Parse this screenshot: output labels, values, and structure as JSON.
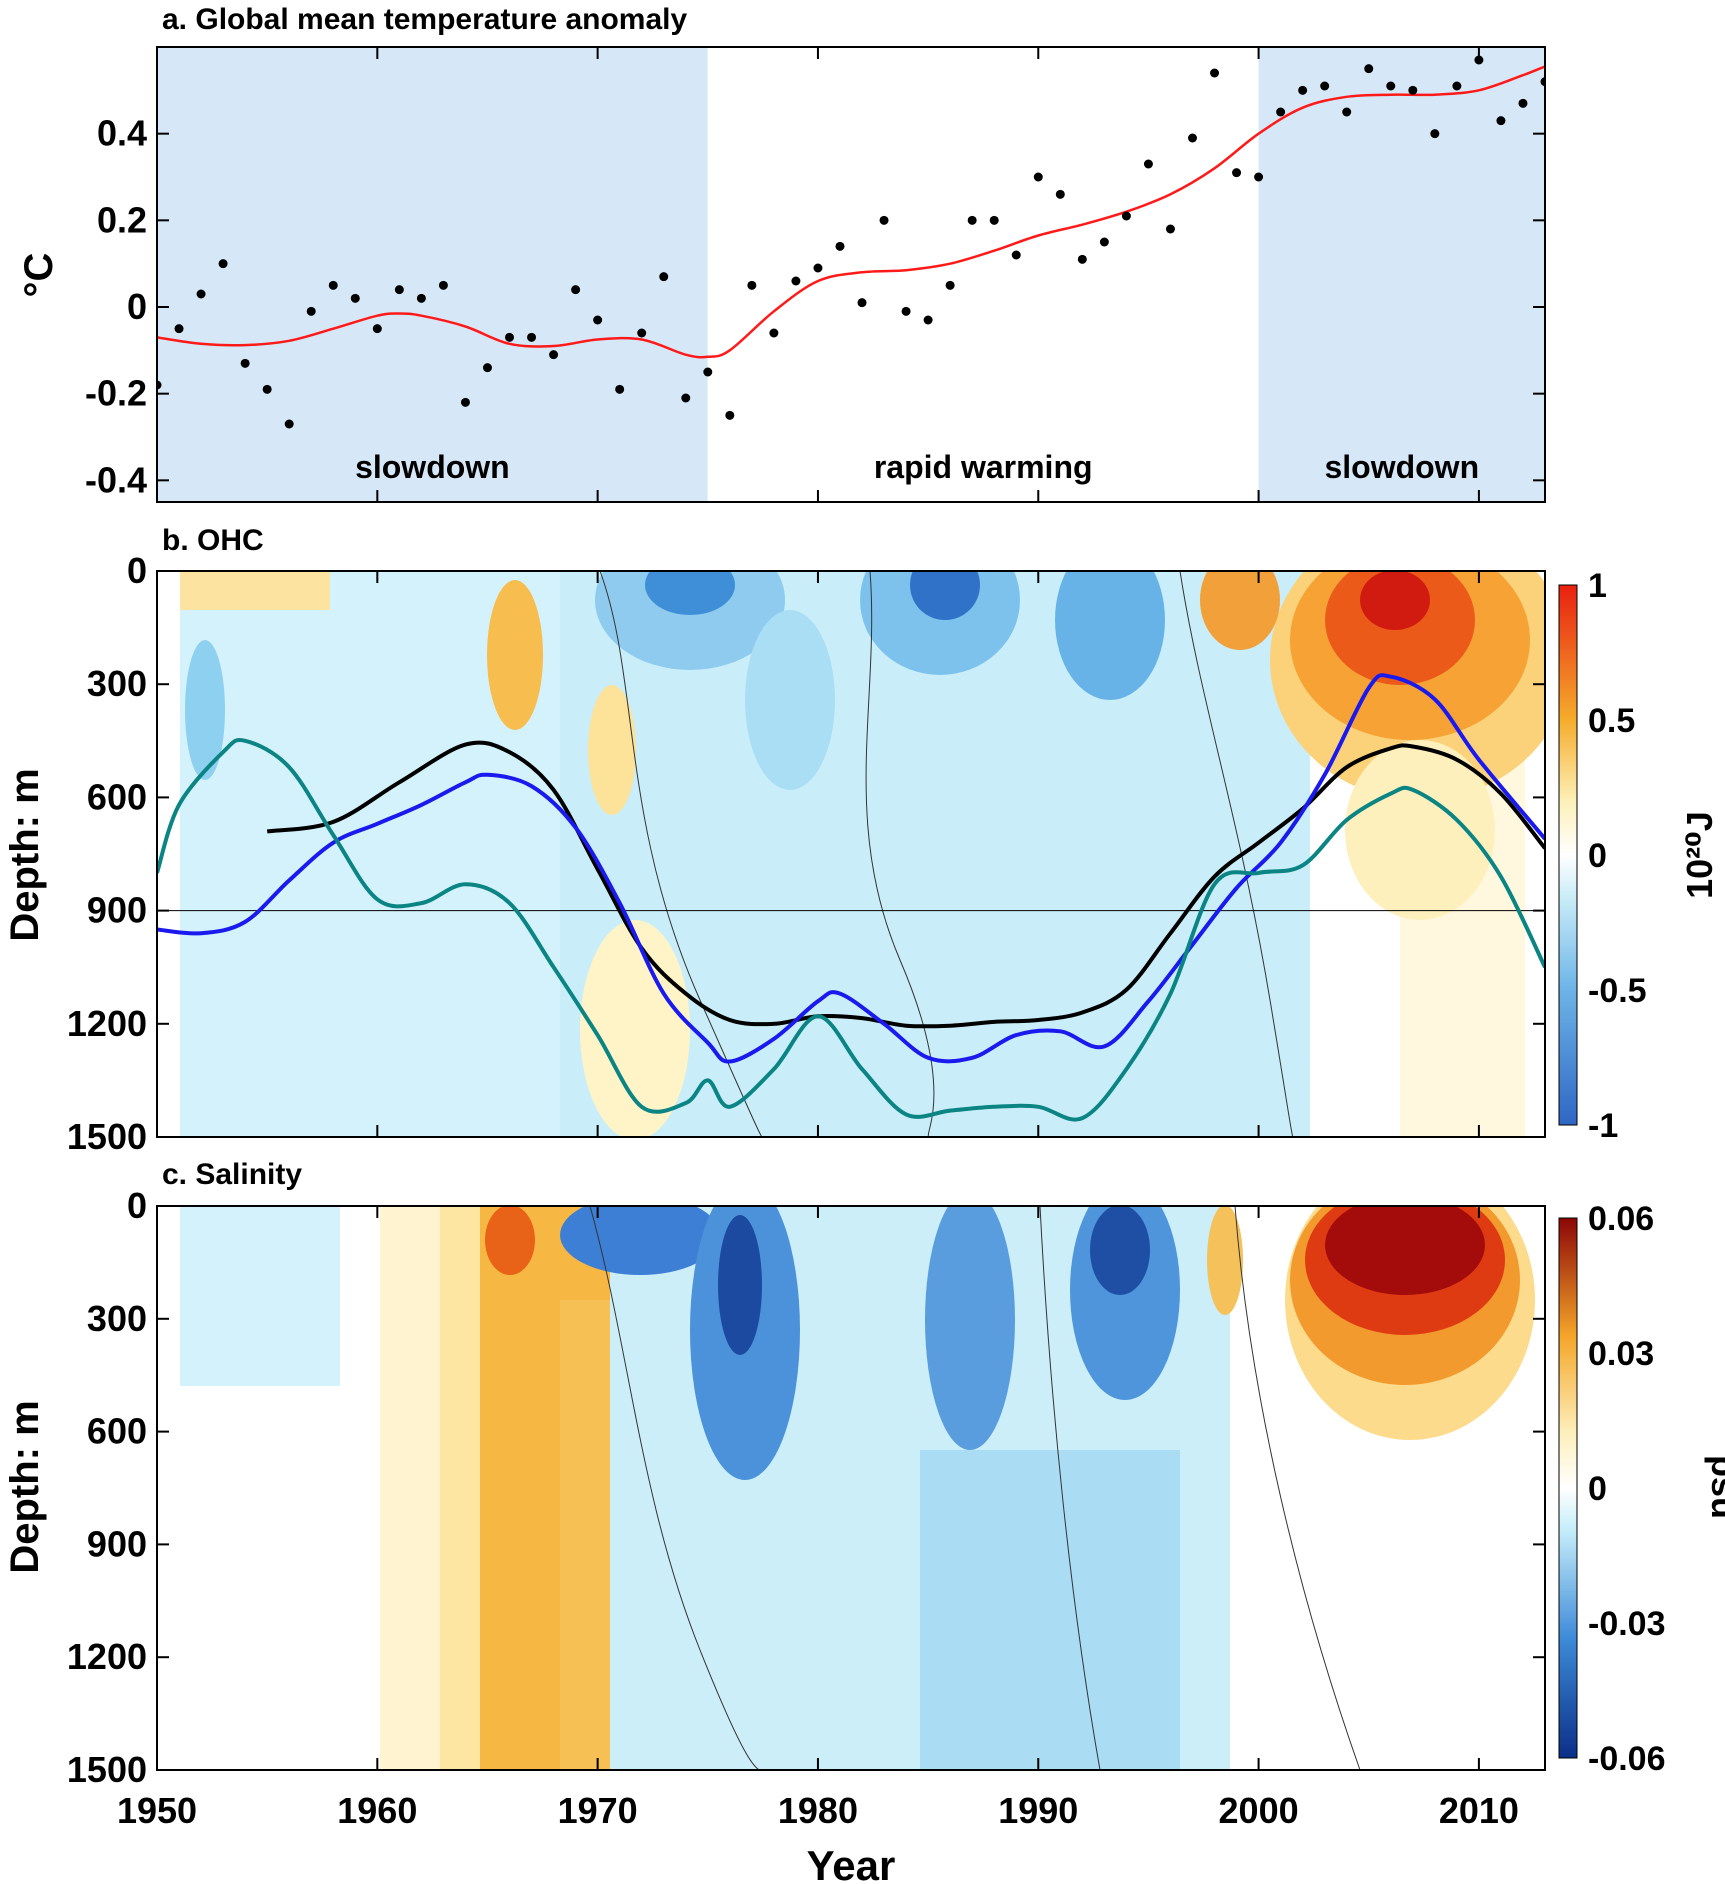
{
  "chart_data": [
    {
      "type": "scatter+line",
      "title": "a. Global mean temperature anomaly",
      "ylabel": "°C",
      "xlim": [
        1950,
        2013
      ],
      "ylim": [
        -0.45,
        0.6
      ],
      "yticks": [
        -0.4,
        -0.2,
        0,
        0.2,
        0.4
      ],
      "ytick_labels": [
        "-0.4",
        "-0.2",
        "0",
        "0.2",
        "0.4"
      ],
      "shaded_periods": [
        {
          "start": 1950,
          "end": 1975,
          "label": "slowdown",
          "color": "#d6e8f8"
        },
        {
          "start": 1975,
          "end": 2000,
          "label": "rapid warming",
          "color": "#ffffff"
        },
        {
          "start": 2000,
          "end": 2013,
          "label": "slowdown",
          "color": "#d6e8f8"
        }
      ],
      "annual_points": {
        "years": [
          1950,
          1951,
          1952,
          1953,
          1954,
          1955,
          1956,
          1957,
          1958,
          1959,
          1960,
          1961,
          1962,
          1963,
          1964,
          1965,
          1966,
          1967,
          1968,
          1969,
          1970,
          1971,
          1972,
          1973,
          1974,
          1975,
          1976,
          1977,
          1978,
          1979,
          1980,
          1981,
          1982,
          1983,
          1984,
          1985,
          1986,
          1987,
          1988,
          1989,
          1990,
          1991,
          1992,
          1993,
          1994,
          1995,
          1996,
          1997,
          1998,
          1999,
          2000,
          2001,
          2002,
          2003,
          2004,
          2005,
          2006,
          2007,
          2008,
          2009,
          2010,
          2011,
          2012,
          2013
        ],
        "values": [
          -0.18,
          -0.05,
          0.03,
          0.1,
          -0.13,
          -0.19,
          -0.27,
          -0.01,
          0.05,
          0.02,
          -0.05,
          0.04,
          0.02,
          0.05,
          -0.22,
          -0.14,
          -0.07,
          -0.07,
          -0.11,
          0.04,
          -0.03,
          -0.19,
          -0.06,
          0.07,
          -0.21,
          -0.15,
          -0.25,
          0.05,
          -0.06,
          0.06,
          0.09,
          0.14,
          0.01,
          0.2,
          -0.01,
          -0.03,
          0.05,
          0.2,
          0.2,
          0.12,
          0.3,
          0.26,
          0.11,
          0.15,
          0.21,
          0.33,
          0.18,
          0.39,
          0.54,
          0.31,
          0.3,
          0.45,
          0.5,
          0.51,
          0.45,
          0.55,
          0.51,
          0.5,
          0.4,
          0.51,
          0.57,
          0.43,
          0.47,
          0.52
        ],
        "color": "#000000"
      },
      "smoothed_line": {
        "years": [
          1950,
          1952,
          1954,
          1956,
          1958,
          1960,
          1961,
          1962,
          1964,
          1966,
          1968,
          1970,
          1972,
          1974,
          1975,
          1976,
          1978,
          1980,
          1982,
          1984,
          1986,
          1988,
          1990,
          1992,
          1994,
          1996,
          1998,
          2000,
          2002,
          2004,
          2006,
          2008,
          2010,
          2012,
          2013
        ],
        "values": [
          -0.07,
          -0.085,
          -0.088,
          -0.078,
          -0.05,
          -0.02,
          -0.015,
          -0.02,
          -0.045,
          -0.085,
          -0.09,
          -0.075,
          -0.075,
          -0.11,
          -0.115,
          -0.1,
          -0.01,
          0.06,
          0.08,
          0.085,
          0.1,
          0.13,
          0.165,
          0.19,
          0.22,
          0.26,
          0.32,
          0.4,
          0.46,
          0.485,
          0.49,
          0.49,
          0.5,
          0.535,
          0.555
        ],
        "color": "#ff0000"
      }
    },
    {
      "type": "heatmap",
      "title": "b. OHC",
      "ylabel": "Depth: m",
      "xlim": [
        1950,
        2013
      ],
      "ylim": [
        1500,
        0
      ],
      "yticks": [
        0,
        300,
        600,
        900,
        1200,
        1500
      ],
      "ytick_labels": [
        "0",
        "300",
        "600",
        "900",
        "1200",
        "1500"
      ],
      "reference_depth": 900,
      "colorbar": {
        "label": "10²⁰J",
        "ticks": [
          1,
          0.5,
          0,
          -0.5,
          -1
        ],
        "tick_labels": [
          "1",
          "0.5",
          "0",
          "-0.5",
          "-1"
        ],
        "range": [
          -1,
          1
        ]
      },
      "series": [
        {
          "name": "black",
          "years": [
            1955,
            1958,
            1961,
            1964,
            1966,
            1968,
            1970,
            1972,
            1974,
            1976,
            1978,
            1980,
            1982,
            1984,
            1986,
            1988,
            1990,
            1992,
            1994,
            1996,
            1998,
            2000,
            2002,
            2004,
            2006,
            2007,
            2009,
            2011,
            2013
          ],
          "depths": [
            690,
            665,
            560,
            460,
            480,
            580,
            790,
            1000,
            1120,
            1190,
            1200,
            1180,
            1185,
            1205,
            1205,
            1195,
            1190,
            1170,
            1110,
            960,
            810,
            720,
            630,
            520,
            470,
            465,
            500,
            590,
            735
          ],
          "color": "#000000"
        },
        {
          "name": "blue",
          "years": [
            1950,
            1952,
            1954,
            1956,
            1958,
            1960,
            1962,
            1964,
            1965,
            1967,
            1969,
            1971,
            1973,
            1975,
            1976,
            1978,
            1980,
            1981,
            1983,
            1985,
            1987,
            1989,
            1991,
            1993,
            1995,
            1997,
            1999,
            2001,
            2003,
            2005,
            2006,
            2008,
            2010,
            2013
          ],
          "depths": [
            950,
            960,
            930,
            820,
            720,
            670,
            620,
            560,
            540,
            570,
            680,
            880,
            1120,
            1250,
            1300,
            1240,
            1140,
            1120,
            1200,
            1290,
            1290,
            1230,
            1220,
            1260,
            1140,
            990,
            840,
            720,
            540,
            310,
            280,
            340,
            500,
            710
          ],
          "color": "#0000ee"
        },
        {
          "name": "teal",
          "years": [
            1950,
            1951,
            1953,
            1954,
            1956,
            1958,
            1960,
            1962,
            1964,
            1966,
            1968,
            1970,
            1972,
            1974,
            1975,
            1976,
            1978,
            1980,
            1982,
            1984,
            1986,
            1988,
            1990,
            1992,
            1994,
            1996,
            1998,
            2000,
            2002,
            2004,
            2006,
            2007,
            2009,
            2011,
            2013
          ],
          "depths": [
            800,
            620,
            480,
            450,
            520,
            700,
            870,
            880,
            830,
            880,
            1050,
            1230,
            1420,
            1410,
            1350,
            1420,
            1320,
            1180,
            1320,
            1440,
            1430,
            1420,
            1420,
            1450,
            1320,
            1120,
            830,
            800,
            780,
            660,
            590,
            580,
            660,
            810,
            1050
          ],
          "color": "#008080"
        }
      ]
    },
    {
      "type": "heatmap",
      "title": "c. Salinity",
      "ylabel": "Depth: m",
      "xlabel": "Year",
      "xlim": [
        1950,
        2013
      ],
      "xticks": [
        1950,
        1960,
        1970,
        1980,
        1990,
        2000,
        2010
      ],
      "xtick_labels": [
        "1950",
        "1960",
        "1970",
        "1980",
        "1990",
        "2000",
        "2010"
      ],
      "ylim": [
        1500,
        0
      ],
      "yticks": [
        0,
        300,
        600,
        900,
        1200,
        1500
      ],
      "ytick_labels": [
        "0",
        "300",
        "600",
        "900",
        "1200",
        "1500"
      ],
      "colorbar": {
        "label": "psu",
        "ticks": [
          0.06,
          0.03,
          0,
          -0.03,
          -0.06
        ],
        "tick_labels": [
          "0.06",
          "0.03",
          "0",
          "-0.03",
          "-0.06"
        ],
        "range": [
          -0.06,
          0.06
        ]
      }
    }
  ]
}
